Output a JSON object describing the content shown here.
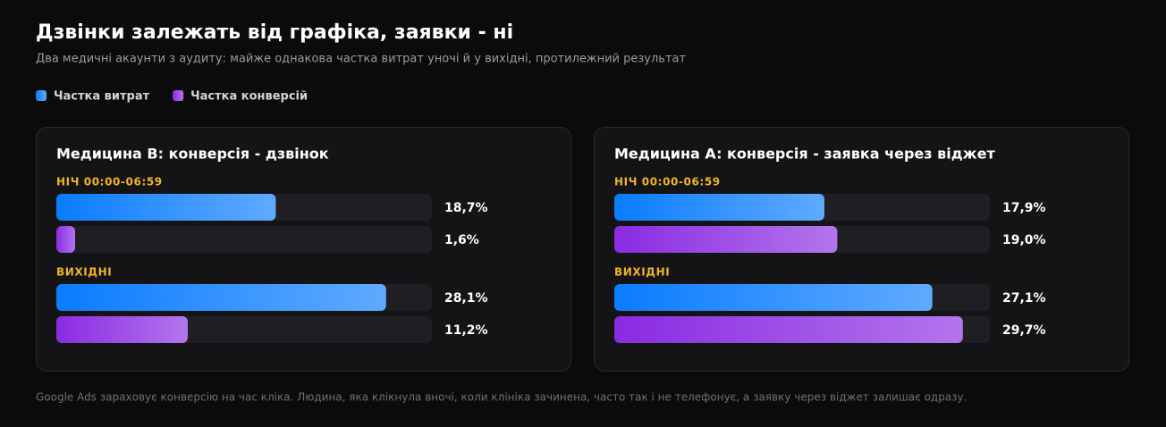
{
  "title": "Дзвінки залежать від графіка, заявки - ні",
  "subtitle": "Два медичні акаунти з аудиту: майже однакова частка витрат уночі й у вихідні, протилежний результат",
  "footnote": "Google Ads зараховує конверсію на час кліка. Людина, яка клікнула вночі, коли клініка зачинена, часто так і не телефонує, а заявку через віджет залишає одразу.",
  "chart_data": [
    {
      "type": "bar",
      "orientation": "horizontal",
      "title": "Медицина B: конверсія - дзвінок",
      "categories": [
        "НІЧ 00:00-06:59",
        "ВИХІДНІ"
      ],
      "series": [
        {
          "name": "Частка витрат",
          "color": "#0a7cff",
          "values": [
            18.7,
            28.1
          ],
          "value_labels": [
            "18,7%",
            "28,1%"
          ]
        },
        {
          "name": "Частка конверсій",
          "color": "#8a2be2",
          "values": [
            1.6,
            11.2
          ],
          "value_labels": [
            "1,6%",
            "11,2%"
          ]
        }
      ],
      "xlim": [
        0,
        32
      ]
    },
    {
      "type": "bar",
      "orientation": "horizontal",
      "title": "Медицина A: конверсія - заявка через віджет",
      "categories": [
        "НІЧ 00:00-06:59",
        "ВИХІДНІ"
      ],
      "series": [
        {
          "name": "Частка витрат",
          "color": "#0a7cff",
          "values": [
            17.9,
            27.1
          ],
          "value_labels": [
            "17,9%",
            "27,1%"
          ]
        },
        {
          "name": "Частка конверсій",
          "color": "#8a2be2",
          "values": [
            19.0,
            29.7
          ],
          "value_labels": [
            "19,0%",
            "29,7%"
          ]
        }
      ],
      "xlim": [
        0,
        32
      ]
    }
  ]
}
